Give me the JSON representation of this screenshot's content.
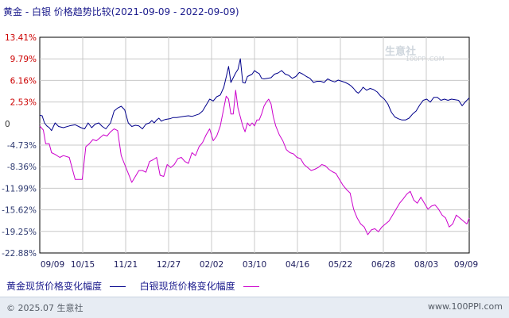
{
  "title": "黄金 - 白银 价格趋势比较(2021-09-09 - 2022-09-09)",
  "watermark": {
    "name": "生意社",
    "url": "100PPI.COM"
  },
  "footer": {
    "copyright": "© 2025.07 生意社",
    "site": "www.100PPI.com"
  },
  "colors": {
    "gold": "#00008b",
    "silver": "#cc00cc",
    "grid": "#c8c8c8",
    "axis": "#000000"
  },
  "chart_data": {
    "type": "line",
    "title": "黄金 - 白银 价格趋势比较(2021-09-09 - 2022-09-09)",
    "xlabel": "",
    "ylabel": "",
    "x_ticks": [
      "09/09",
      "10/15",
      "11/21",
      "12/27",
      "02/02",
      "03/10",
      "04/16",
      "05/22",
      "06/28",
      "08/03",
      "09/09"
    ],
    "y_ticks": [
      "13.41%",
      "9.79%",
      "6.16%",
      "2.53%",
      "0",
      "-4.73%",
      "-8.36%",
      "-11.99%",
      "-15.62%",
      "-19.25%",
      "-22.88%"
    ],
    "ylim": [
      -22.88,
      13.41
    ],
    "grid": true,
    "legend_position": "bottom",
    "series": [
      {
        "name": "黄金现货价格变化幅度",
        "color": "#00008b",
        "x": [
          0,
          2,
          4,
          6,
          8,
          10,
          13,
          16,
          20,
          25,
          30,
          35,
          38,
          41,
          44,
          47,
          50,
          53,
          56,
          60,
          63,
          66,
          69,
          72,
          75,
          78,
          81,
          84,
          87,
          90,
          93,
          95,
          97,
          99,
          101,
          103,
          105,
          107,
          110,
          113,
          116,
          119,
          122,
          126,
          129,
          132,
          135,
          138,
          141,
          144,
          147,
          150,
          153,
          156,
          158,
          160,
          162,
          164,
          166,
          168,
          170,
          172,
          174,
          176,
          178,
          180,
          182,
          184,
          186,
          188,
          190,
          193,
          196,
          199,
          202,
          205,
          208,
          211,
          214,
          217,
          220,
          223,
          226,
          229,
          232,
          235,
          238,
          241,
          244,
          247,
          250,
          253,
          256,
          259,
          262,
          264,
          266,
          268,
          270,
          272,
          274,
          277,
          280,
          283,
          286,
          289,
          292,
          295,
          298,
          301,
          304,
          307,
          310,
          313,
          316,
          319,
          322,
          325,
          328,
          331,
          334,
          337,
          340,
          343,
          346,
          349,
          352,
          355,
          358,
          361,
          364
        ],
        "values": [
          0.3,
          0.2,
          -1.0,
          -1.5,
          -1.8,
          -2.3,
          -1.0,
          -1.6,
          -1.8,
          -1.5,
          -1.3,
          -1.8,
          -2.0,
          -1.0,
          -1.8,
          -1.2,
          -1.0,
          -1.6,
          -2.0,
          -1.0,
          1.0,
          1.5,
          1.8,
          1.2,
          -1.0,
          -1.6,
          -1.4,
          -1.5,
          -2.0,
          -1.2,
          -1.0,
          -0.6,
          -1.0,
          -0.5,
          -0.2,
          -0.7,
          -0.5,
          -0.4,
          -0.3,
          -0.1,
          -0.1,
          0.0,
          0.1,
          0.2,
          0.1,
          0.3,
          0.5,
          1.0,
          2.0,
          3.0,
          2.7,
          3.4,
          3.7,
          5.0,
          6.7,
          8.5,
          5.8,
          6.6,
          7.4,
          8.0,
          9.8,
          5.8,
          5.7,
          6.8,
          7.0,
          7.2,
          7.8,
          7.5,
          7.3,
          6.5,
          6.4,
          6.5,
          6.6,
          7.2,
          7.4,
          7.8,
          7.2,
          7.0,
          6.5,
          6.8,
          7.5,
          7.2,
          6.8,
          6.5,
          5.8,
          6.0,
          6.0,
          5.8,
          6.4,
          6.1,
          5.9,
          6.2,
          6.0,
          5.8,
          5.5,
          5.2,
          4.8,
          4.3,
          4.0,
          4.4,
          5.0,
          4.5,
          4.8,
          4.6,
          4.2,
          3.5,
          3.0,
          2.2,
          0.8,
          0.0,
          -0.3,
          -0.5,
          -0.5,
          -0.2,
          0.5,
          1.0,
          2.0,
          2.8,
          3.0,
          2.5,
          3.3,
          3.3,
          2.8,
          3.0,
          2.8,
          3.0,
          2.9,
          2.8,
          1.9,
          2.6,
          3.2
        ]
      },
      {
        "name": "白银现货价格变化幅度",
        "color": "#cc00cc",
        "x": [
          0,
          3,
          5,
          8,
          10,
          13,
          17,
          20,
          25,
          30,
          33,
          36,
          39,
          42,
          45,
          48,
          51,
          54,
          57,
          60,
          63,
          66,
          69,
          72,
          75,
          78,
          81,
          84,
          87,
          90,
          93,
          96,
          99,
          102,
          105,
          108,
          111,
          114,
          117,
          120,
          123,
          126,
          129,
          132,
          135,
          138,
          141,
          144,
          147,
          150,
          153,
          156,
          158,
          160,
          162,
          164,
          166,
          168,
          170,
          172,
          174,
          176,
          178,
          180,
          182,
          184,
          186,
          188,
          190,
          192,
          194,
          196,
          198,
          200,
          203,
          206,
          209,
          212,
          215,
          218,
          221,
          224,
          227,
          230,
          233,
          236,
          239,
          242,
          245,
          248,
          251,
          254,
          257,
          260,
          263,
          266,
          269,
          272,
          275,
          278,
          281,
          284,
          287,
          290,
          293,
          296,
          299,
          302,
          305,
          308,
          311,
          314,
          317,
          320,
          323,
          326,
          329,
          332,
          335,
          338,
          341,
          344,
          347,
          350,
          353,
          356,
          359,
          362,
          364
        ],
        "values": [
          -1.5,
          -2.2,
          -4.5,
          -4.5,
          -6.0,
          -6.3,
          -6.8,
          -6.5,
          -6.8,
          -10.5,
          -10.5,
          -10.5,
          -5.0,
          -4.5,
          -3.8,
          -4.0,
          -3.5,
          -3.0,
          -3.2,
          -2.5,
          -2.0,
          -2.3,
          -6.5,
          -8.0,
          -9.5,
          -11.0,
          -10.0,
          -9.0,
          -9.0,
          -9.3,
          -7.5,
          -7.2,
          -6.8,
          -9.8,
          -10.0,
          -8.0,
          -8.5,
          -8.0,
          -7.0,
          -6.8,
          -7.5,
          -7.8,
          -6.0,
          -6.5,
          -5.0,
          -4.3,
          -3.0,
          -2.0,
          -4.0,
          -3.2,
          -1.5,
          1.5,
          3.5,
          3.0,
          0.5,
          0.5,
          4.5,
          1.5,
          0.0,
          -1.5,
          -2.5,
          -1.0,
          -1.5,
          -1.0,
          -1.5,
          -0.5,
          -0.5,
          0.5,
          1.8,
          2.5,
          3.0,
          2.2,
          0.0,
          -1.5,
          -3.0,
          -4.0,
          -5.5,
          -6.0,
          -6.2,
          -6.8,
          -7.0,
          -8.0,
          -8.5,
          -9.0,
          -8.8,
          -8.5,
          -8.0,
          -8.2,
          -8.8,
          -9.2,
          -9.5,
          -10.5,
          -11.5,
          -12.2,
          -12.8,
          -15.5,
          -17.0,
          -18.0,
          -18.5,
          -19.8,
          -19.0,
          -18.8,
          -19.3,
          -18.5,
          -18.0,
          -17.5,
          -16.5,
          -15.5,
          -14.5,
          -13.8,
          -13.0,
          -12.5,
          -14.0,
          -14.5,
          -13.5,
          -14.5,
          -15.5,
          -15.0,
          -14.8,
          -15.5,
          -16.5,
          -17.0,
          -18.5,
          -18.0,
          -16.5,
          -17.0,
          -17.5,
          -18.0,
          -17.0
        ]
      }
    ]
  }
}
